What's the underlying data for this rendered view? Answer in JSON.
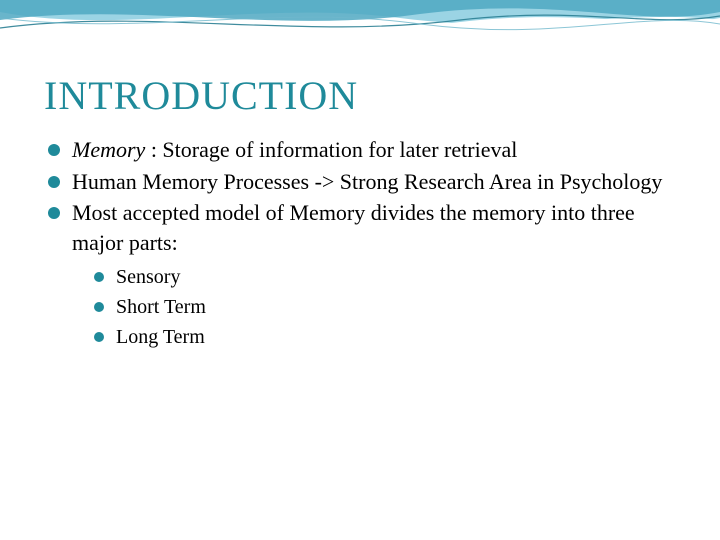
{
  "slide": {
    "title": "INTRODUCTION",
    "title_color": "#1f8a9a",
    "bullet_color": "#1f8a9a",
    "sub_bullet_color": "#1f8a9a",
    "text_color": "#000000",
    "background_color": "#ffffff",
    "wave_colors": {
      "back": "#9bd4e4",
      "mid": "#4fa8c2",
      "front": "#ffffff",
      "stroke": "#2b7f94"
    },
    "title_fontsize": 40,
    "body_fontsize": 22,
    "sub_fontsize": 20,
    "bullets": [
      {
        "italic_lead": "Memory",
        "rest": " : Storage of information for later retrieval"
      },
      {
        "text": "Human Memory Processes -> Strong Research Area in Psychology"
      },
      {
        "text": "Most accepted model of Memory divides the memory into three major parts:",
        "subs": [
          "Sensory",
          "Short Term",
          "Long Term"
        ]
      }
    ]
  }
}
